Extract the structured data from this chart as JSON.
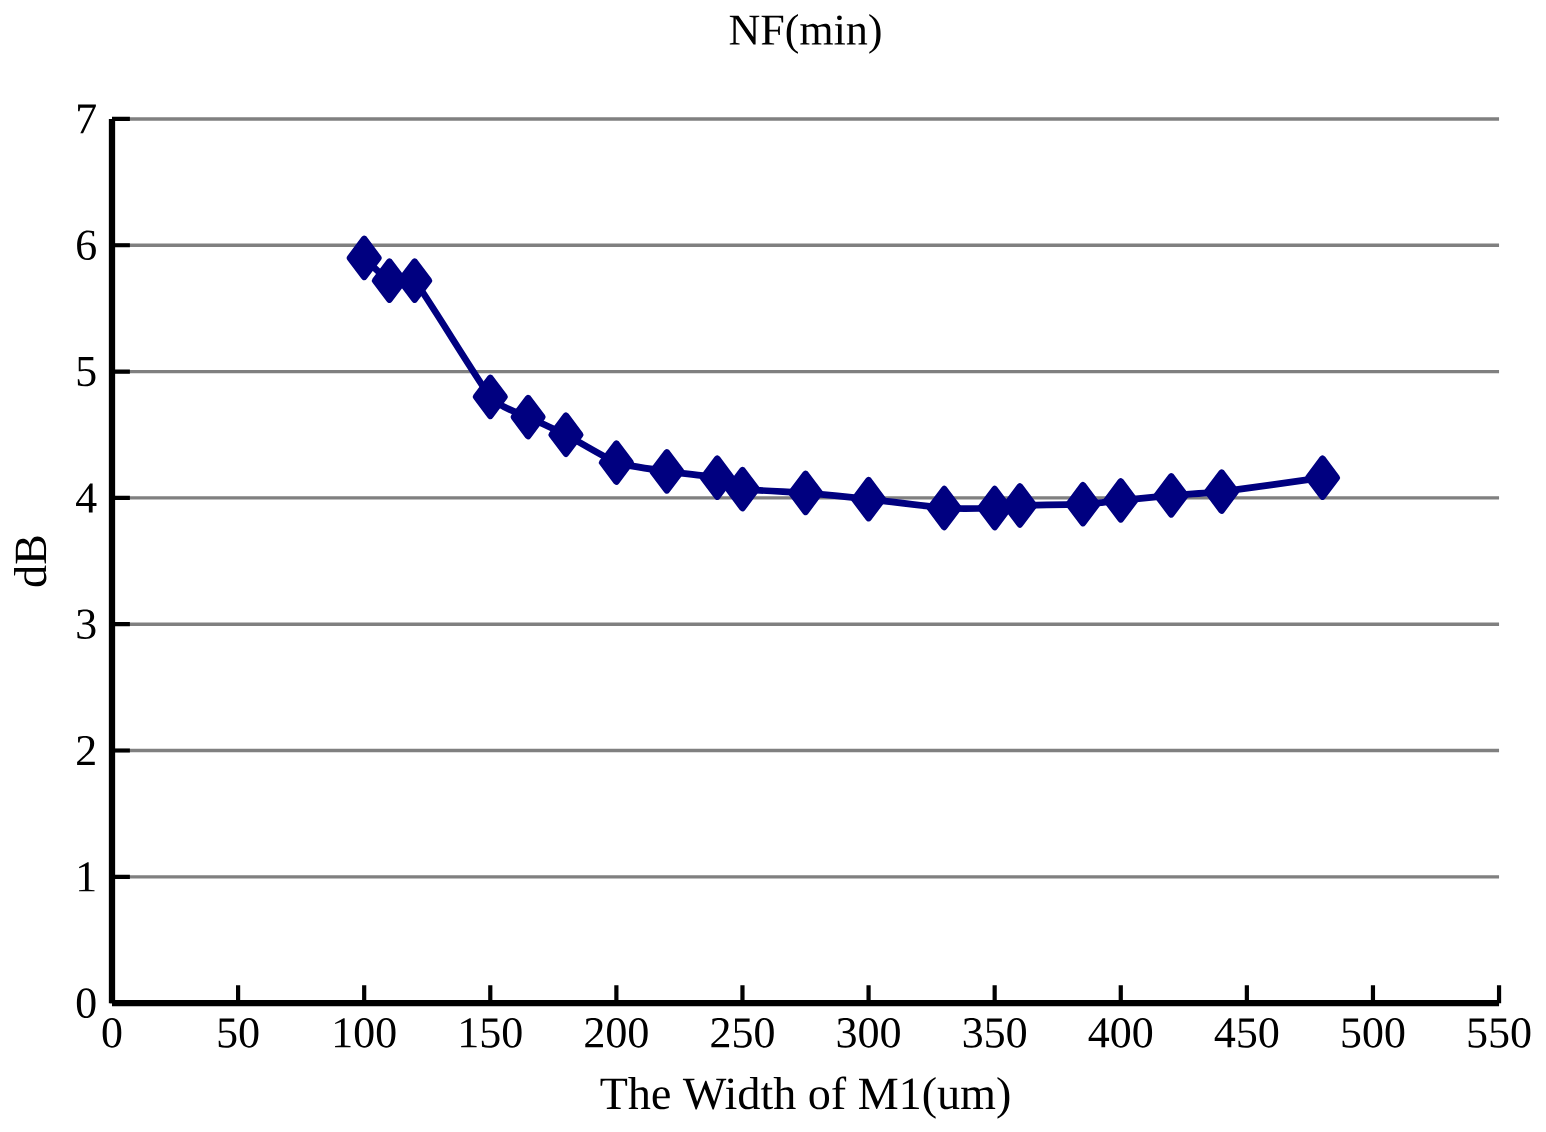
{
  "chart_data": {
    "type": "line",
    "title": "NF(min)",
    "xlabel": "The Width of M1(um)",
    "ylabel": "dB",
    "x": [
      100,
      110,
      120,
      150,
      165,
      180,
      200,
      220,
      240,
      250,
      275,
      300,
      330,
      350,
      360,
      385,
      400,
      420,
      440,
      480
    ],
    "series": [
      {
        "color": "#000080",
        "values": [
          5.9,
          5.72,
          5.72,
          4.8,
          4.64,
          4.5,
          4.28,
          4.21,
          4.16,
          4.07,
          4.04,
          3.99,
          3.92,
          3.92,
          3.94,
          3.95,
          3.98,
          4.02,
          4.05,
          4.16
        ]
      }
    ],
    "xlim": [
      0,
      550
    ],
    "xticks": [
      0,
      50,
      100,
      150,
      200,
      250,
      300,
      350,
      400,
      450,
      500,
      550
    ],
    "ylim": [
      0,
      7
    ],
    "yticks": [
      0,
      1,
      2,
      3,
      4,
      5,
      6,
      7
    ],
    "grid": "y",
    "marker": "diamond",
    "line_style": "solid"
  }
}
